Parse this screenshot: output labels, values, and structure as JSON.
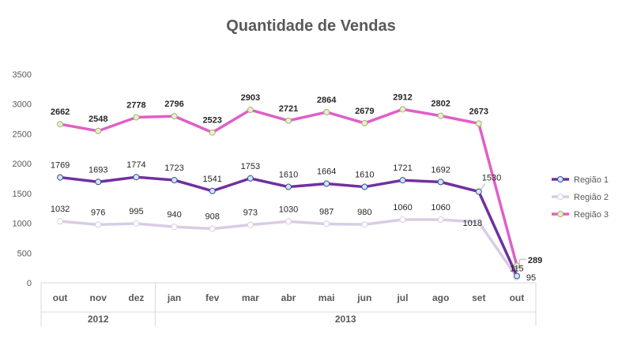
{
  "chart_data": {
    "type": "line",
    "title": "Quantidade de Vendas",
    "categories": [
      "out",
      "nov",
      "dez",
      "jan",
      "fev",
      "mar",
      "abr",
      "mai",
      "jun",
      "jul",
      "ago",
      "set",
      "out"
    ],
    "groups": [
      {
        "label": "2012",
        "span": 3
      },
      {
        "label": "2013",
        "span": 10
      }
    ],
    "ylim": [
      0,
      3500
    ],
    "yticks": [
      0,
      500,
      1000,
      1500,
      2000,
      2500,
      3000,
      3500
    ],
    "grid": false,
    "legend_position": "right",
    "series": [
      {
        "name": "Região 1",
        "color": "#7030A0",
        "values": [
          1769,
          1693,
          1774,
          1723,
          1541,
          1753,
          1610,
          1664,
          1610,
          1721,
          1692,
          1530,
          115
        ]
      },
      {
        "name": "Região 2",
        "color": "#D9CCE4",
        "values": [
          1032,
          976,
          995,
          940,
          908,
          973,
          1030,
          987,
          980,
          1060,
          1060,
          1018,
          95
        ]
      },
      {
        "name": "Região 3",
        "color": "#E05FC8",
        "values": [
          2662,
          2548,
          2778,
          2796,
          2523,
          2903,
          2721,
          2864,
          2679,
          2912,
          2802,
          2673,
          289
        ]
      }
    ]
  }
}
